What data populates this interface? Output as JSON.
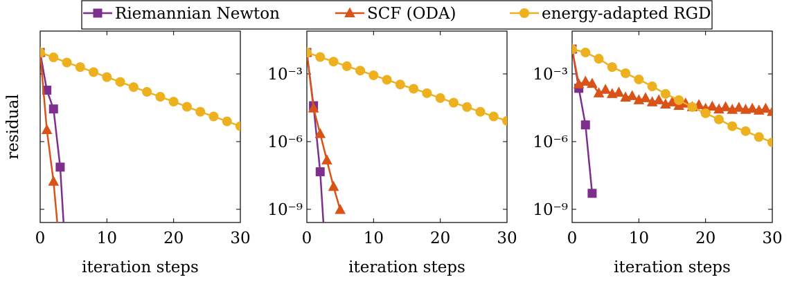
{
  "legend": [
    "Riemannian Newton",
    "SCF (ODA)",
    "energy-adapted RGD"
  ],
  "chart_data": [
    {
      "type": "line",
      "log_y": true,
      "xlabel": "iteration steps",
      "ylabel": "residual",
      "xlim": [
        0,
        30
      ],
      "xticks": [
        0,
        10,
        20,
        30
      ],
      "ylim": [
        2.6e-10,
        0.079
      ],
      "yticks": [
        0.001,
        1e-06,
        1e-09
      ],
      "show_ytick_labels": false,
      "series": [
        {
          "color": "#7e2f8e",
          "marker": "square",
          "x": [
            0,
            1,
            2,
            3,
            4
          ],
          "values": [
            0.0089,
            0.00019,
            2.8e-05,
            7.4e-08,
            1e-12
          ]
        },
        {
          "color": "#d95319",
          "marker": "triangle",
          "x": [
            0,
            1,
            2,
            3
          ],
          "values": [
            0.0089,
            3.3e-06,
            1.7e-08,
            1e-11
          ]
        },
        {
          "color": "#edb120",
          "marker": "circle",
          "x": [
            0,
            2,
            4,
            6,
            8,
            10,
            12,
            14,
            16,
            18,
            20,
            22,
            24,
            26,
            28,
            30
          ],
          "values": [
            0.0089,
            0.0054,
            0.0032,
            0.002,
            0.0012,
            0.00072,
            0.00044,
            0.00026,
            0.00016,
            9.7e-05,
            5.9e-05,
            3.5e-05,
            2.1e-05,
            1.3e-05,
            7.9e-06,
            4.8e-06
          ]
        }
      ]
    },
    {
      "type": "line",
      "log_y": true,
      "xlabel": "iteration steps",
      "xlim": [
        0,
        30
      ],
      "xticks": [
        0,
        10,
        20,
        30
      ],
      "ylim": [
        2.6e-10,
        0.079
      ],
      "yticks": [
        {
          "value": 0.001,
          "label": "10⁻³"
        },
        {
          "value": 1e-06,
          "label": "10⁻⁶"
        },
        {
          "value": 1e-09,
          "label": "10⁻⁹"
        }
      ],
      "show_ytick_labels": true,
      "series": [
        {
          "color": "#7e2f8e",
          "marker": "square",
          "x": [
            0,
            1,
            2,
            3
          ],
          "values": [
            0.0089,
            3.9e-05,
            4.6e-08,
            1e-12
          ]
        },
        {
          "color": "#d95319",
          "marker": "triangle",
          "x": [
            0,
            1,
            2,
            3,
            4,
            5
          ],
          "values": [
            0.0089,
            3e-05,
            2.2e-06,
            1.5e-07,
            1e-08,
            9.5e-10
          ]
        },
        {
          "color": "#edb120",
          "marker": "circle",
          "x": [
            0,
            2,
            4,
            6,
            8,
            10,
            12,
            14,
            16,
            18,
            20,
            22,
            24,
            26,
            28,
            30
          ],
          "values": [
            0.0089,
            0.0056,
            0.0035,
            0.0022,
            0.0014,
            0.00087,
            0.00055,
            0.00034,
            0.00022,
            0.00014,
            8.5e-05,
            5.3e-05,
            3.4e-05,
            2.1e-05,
            1.3e-05,
            8.3e-06
          ]
        }
      ]
    },
    {
      "type": "line",
      "log_y": true,
      "xlabel": "iteration steps",
      "xlim": [
        0,
        30
      ],
      "xticks": [
        0,
        10,
        20,
        30
      ],
      "ylim": [
        2.6e-10,
        0.079
      ],
      "yticks": [
        {
          "value": 0.001,
          "label": "10⁻³"
        },
        {
          "value": 1e-06,
          "label": "10⁻⁶"
        },
        {
          "value": 1e-09,
          "label": "10⁻⁹"
        }
      ],
      "show_ytick_labels": true,
      "series": [
        {
          "color": "#7e2f8e",
          "marker": "square",
          "x": [
            0,
            1,
            2,
            3
          ],
          "values": [
            0.0126,
            0.00023,
            5.5e-06,
            5.1e-09
          ]
        },
        {
          "color": "#d95319",
          "marker": "triangle",
          "x": [
            0,
            1,
            2,
            3,
            4,
            5,
            6,
            7,
            8,
            9,
            10,
            11,
            12,
            13,
            14,
            15,
            16,
            17,
            18,
            19,
            20,
            21,
            22,
            23,
            24,
            25,
            26,
            27,
            28,
            29,
            30
          ],
          "values": [
            0.0126,
            0.00035,
            0.00046,
            0.00037,
            0.00014,
            0.0002,
            0.00013,
            0.00015,
            9.1e-05,
            0.000105,
            6.9e-05,
            8.5e-05,
            5.6e-05,
            6.9e-05,
            4.5e-05,
            5.6e-05,
            3.9e-05,
            4.9e-05,
            3.4e-05,
            4.2e-05,
            2.9e-05,
            3.6e-05,
            2.7e-05,
            3.4e-05,
            2.6e-05,
            3.2e-05,
            2.6e-05,
            2.9e-05,
            2.4e-05,
            2.9e-05,
            2.1e-05
          ]
        },
        {
          "color": "#edb120",
          "marker": "circle",
          "x": [
            0,
            2,
            4,
            6,
            8,
            10,
            12,
            14,
            16,
            18,
            20,
            22,
            24,
            26,
            28,
            30
          ],
          "values": [
            0.0126,
            0.0089,
            0.0047,
            0.002,
            0.00107,
            0.00057,
            0.00028,
            0.00013,
            6.9e-05,
            3.4e-05,
            1.8e-05,
            9.6e-06,
            4.8e-06,
            2.9e-06,
            1.6e-06,
            9.3e-07
          ]
        }
      ]
    }
  ]
}
